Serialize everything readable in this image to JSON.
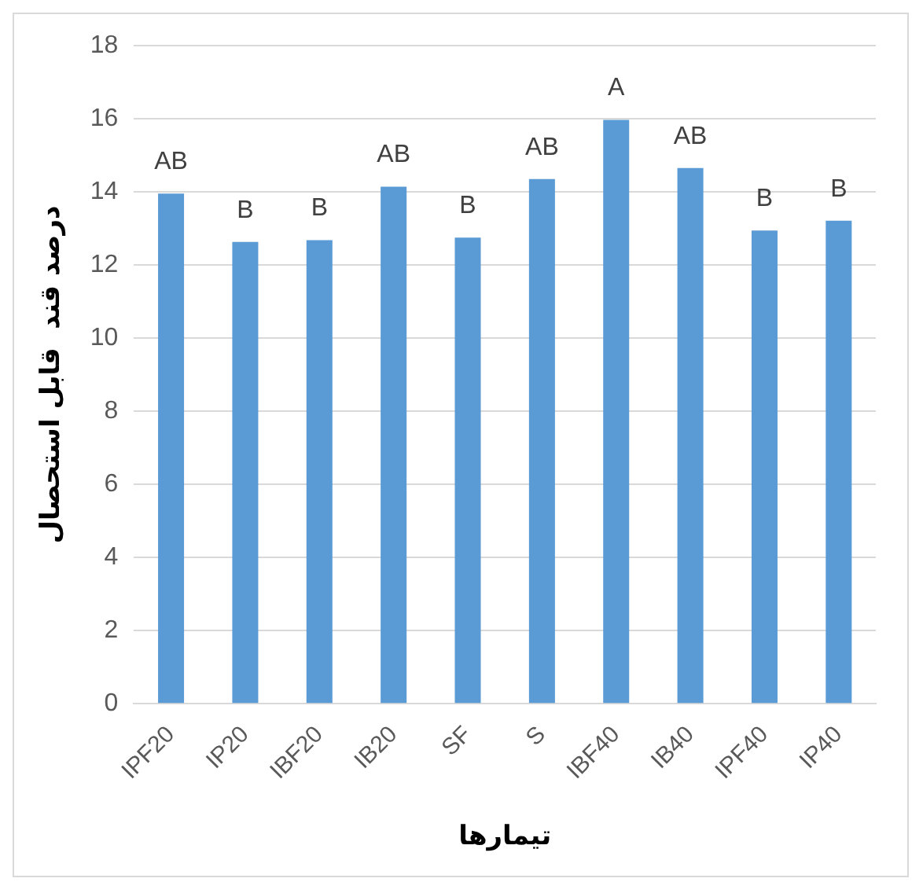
{
  "chart_data": {
    "type": "bar",
    "xlabel": "تیمارها",
    "ylabel": "درصد قند  قابل استحصال",
    "categories": [
      "IPF20",
      "IP20",
      "IBF20",
      "IB20",
      "SF",
      "S",
      "IBF40",
      "IB40",
      "IPF40",
      "IP40"
    ],
    "values": [
      13.95,
      12.63,
      12.68,
      14.14,
      12.75,
      14.35,
      15.97,
      14.65,
      12.94,
      13.21
    ],
    "color": "#5b9bd5",
    "ylim": [
      0,
      18
    ],
    "yticks": [
      0,
      2,
      4,
      6,
      8,
      10,
      12,
      14,
      16,
      18
    ],
    "grid": "y",
    "legend": false,
    "annotations": [
      {
        "text": "AB",
        "x": "IPF20",
        "y": 13.95
      },
      {
        "text": "B",
        "x": "IP20",
        "y": 12.63
      },
      {
        "text": "B",
        "x": "IBF20",
        "y": 12.68
      },
      {
        "text": "AB",
        "x": "IB20",
        "y": 14.14
      },
      {
        "text": "B",
        "x": "SF",
        "y": 12.75
      },
      {
        "text": "AB",
        "x": "S",
        "y": 14.35
      },
      {
        "text": "A",
        "x": "IBF40",
        "y": 15.97
      },
      {
        "text": "AB",
        "x": "IB40",
        "y": 14.65
      },
      {
        "text": "B",
        "x": "IPF40",
        "y": 12.94
      },
      {
        "text": "B",
        "x": "IP40",
        "y": 13.21
      }
    ]
  }
}
